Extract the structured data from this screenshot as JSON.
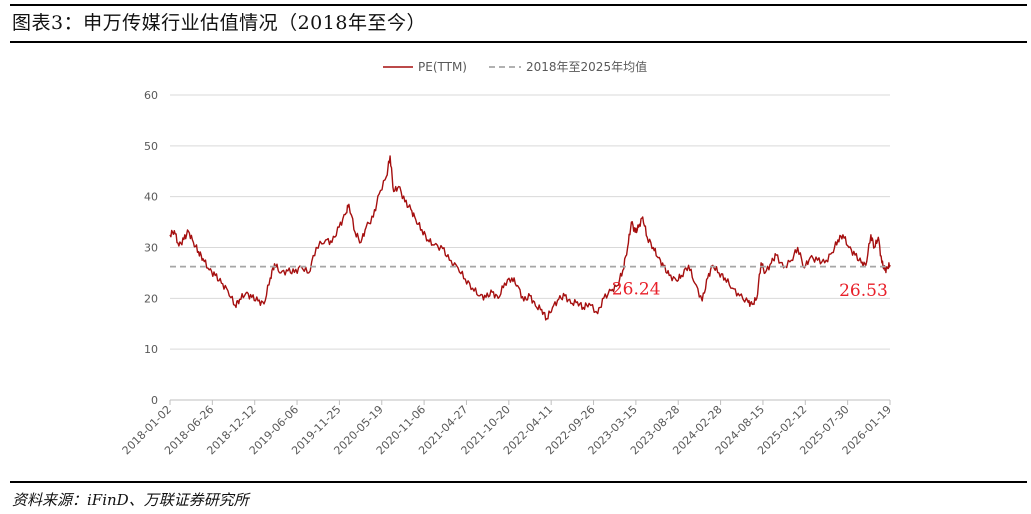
{
  "page": {
    "title": "图表3：申万传媒行业估值情况（2018年至今）",
    "source": "资料来源：iFinD、万联证券研究所"
  },
  "colors": {
    "pe_line": "#a50f0f",
    "avg_line": "#a6a6a6",
    "annotation": "#e8202a",
    "grid": "#d9d9d9",
    "axis_text": "#595959"
  },
  "chart_data": {
    "type": "line",
    "title": "",
    "xlabel": "",
    "ylabel": "",
    "ylim": [
      0,
      60
    ],
    "yticks": [
      0,
      10,
      20,
      30,
      40,
      50,
      60
    ],
    "grid": "horizontal",
    "legend_position": "top-center",
    "x_date_range": [
      "2018-01-02",
      "2026-03-31"
    ],
    "xtick_labels": [
      "2018-01-02",
      "2018-06-26",
      "2018-12-12",
      "2019-06-06",
      "2019-11-25",
      "2020-05-19",
      "2020-11-06",
      "2021-04-27",
      "2021-10-20",
      "2022-04-11",
      "2022-09-26",
      "2023-03-15",
      "2023-08-28",
      "2024-02-28",
      "2024-08-15",
      "2025-02-12",
      "2025-07-30",
      "2026-01-19"
    ],
    "series": [
      {
        "name": "PE(TTM)",
        "style": "solid",
        "points": [
          [
            "2018-01-02",
            32.5
          ],
          [
            "2018-01-20",
            33.3
          ],
          [
            "2018-02-08",
            30.3
          ],
          [
            "2018-03-01",
            31.6
          ],
          [
            "2018-03-20",
            33.2
          ],
          [
            "2018-04-10",
            31.0
          ],
          [
            "2018-05-01",
            29.2
          ],
          [
            "2018-05-20",
            27.8
          ],
          [
            "2018-06-15",
            25.6
          ],
          [
            "2018-07-10",
            24.5
          ],
          [
            "2018-08-05",
            23.0
          ],
          [
            "2018-09-01",
            21.5
          ],
          [
            "2018-10-01",
            18.6
          ],
          [
            "2018-10-20",
            19.8
          ],
          [
            "2018-11-15",
            21.0
          ],
          [
            "2018-12-10",
            20.2
          ],
          [
            "2019-01-05",
            19.5
          ],
          [
            "2019-01-30",
            18.9
          ],
          [
            "2019-02-25",
            24.0
          ],
          [
            "2019-03-15",
            26.8
          ],
          [
            "2019-04-10",
            25.0
          ],
          [
            "2019-05-10",
            25.4
          ],
          [
            "2019-06-06",
            25.1
          ],
          [
            "2019-07-05",
            26.2
          ],
          [
            "2019-08-05",
            25.0
          ],
          [
            "2019-09-05",
            30.0
          ],
          [
            "2019-10-15",
            31.5
          ],
          [
            "2019-11-10",
            31.0
          ],
          [
            "2019-12-10",
            34.0
          ],
          [
            "2020-01-05",
            36.5
          ],
          [
            "2020-01-20",
            38.5
          ],
          [
            "2020-02-15",
            33.0
          ],
          [
            "2020-03-10",
            31.0
          ],
          [
            "2020-04-01",
            34.0
          ],
          [
            "2020-05-01",
            36.0
          ],
          [
            "2020-05-25",
            40.5
          ],
          [
            "2020-06-25",
            44.0
          ],
          [
            "2020-07-10",
            48.0
          ],
          [
            "2020-07-25",
            41.0
          ],
          [
            "2020-08-15",
            42.0
          ],
          [
            "2020-09-10",
            39.0
          ],
          [
            "2020-10-05",
            37.5
          ],
          [
            "2020-10-25",
            35.5
          ],
          [
            "2020-11-20",
            33.5
          ],
          [
            "2020-12-15",
            31.5
          ],
          [
            "2021-01-10",
            30.5
          ],
          [
            "2021-02-15",
            29.8
          ],
          [
            "2021-03-15",
            27.5
          ],
          [
            "2021-04-20",
            26.0
          ],
          [
            "2021-05-20",
            23.8
          ],
          [
            "2021-06-20",
            22.0
          ],
          [
            "2021-07-20",
            20.5
          ],
          [
            "2021-08-15",
            20.2
          ],
          [
            "2021-09-10",
            21.2
          ],
          [
            "2021-10-05",
            20.0
          ],
          [
            "2021-11-01",
            23.0
          ],
          [
            "2021-12-01",
            24.0
          ],
          [
            "2021-12-25",
            22.5
          ],
          [
            "2022-01-20",
            19.5
          ],
          [
            "2022-02-15",
            20.5
          ],
          [
            "2022-03-10",
            18.5
          ],
          [
            "2022-04-05",
            17.8
          ],
          [
            "2022-04-26",
            16.0
          ],
          [
            "2022-05-20",
            18.2
          ],
          [
            "2022-06-15",
            19.8
          ],
          [
            "2022-07-10",
            20.5
          ],
          [
            "2022-08-05",
            19.0
          ],
          [
            "2022-09-01",
            19.3
          ],
          [
            "2022-09-26",
            18.2
          ],
          [
            "2022-10-20",
            19.0
          ],
          [
            "2022-11-25",
            17.0
          ],
          [
            "2022-12-20",
            20.0
          ],
          [
            "2023-01-20",
            21.5
          ],
          [
            "2023-02-15",
            22.5
          ],
          [
            "2023-03-10",
            25.5
          ],
          [
            "2023-03-30",
            30.0
          ],
          [
            "2023-04-15",
            35.0
          ],
          [
            "2023-05-01",
            33.0
          ],
          [
            "2023-05-15",
            34.0
          ],
          [
            "2023-06-01",
            36.0
          ],
          [
            "2023-06-20",
            32.0
          ],
          [
            "2023-07-15",
            30.0
          ],
          [
            "2023-08-05",
            28.0
          ],
          [
            "2023-08-28",
            26.2
          ],
          [
            "2023-09-20",
            24.5
          ],
          [
            "2023-10-20",
            23.5
          ],
          [
            "2023-11-10",
            24.5
          ],
          [
            "2023-12-10",
            26.5
          ],
          [
            "2024-01-05",
            23.0
          ],
          [
            "2024-02-05",
            19.5
          ],
          [
            "2024-02-28",
            24.0
          ],
          [
            "2024-03-20",
            26.5
          ],
          [
            "2024-04-15",
            25.0
          ],
          [
            "2024-05-10",
            24.0
          ],
          [
            "2024-06-10",
            22.0
          ],
          [
            "2024-07-10",
            20.5
          ],
          [
            "2024-08-15",
            19.2
          ],
          [
            "2024-09-01",
            18.8
          ],
          [
            "2024-09-20",
            20.0
          ],
          [
            "2024-10-08",
            27.0
          ],
          [
            "2024-10-25",
            25.0
          ],
          [
            "2024-11-20",
            27.0
          ],
          [
            "2024-12-10",
            28.5
          ],
          [
            "2025-01-10",
            26.0
          ],
          [
            "2025-02-12",
            27.5
          ],
          [
            "2025-03-10",
            30.0
          ],
          [
            "2025-04-07",
            26.0
          ],
          [
            "2025-05-01",
            28.0
          ],
          [
            "2025-06-01",
            27.5
          ],
          [
            "2025-07-01",
            27.0
          ],
          [
            "2025-08-01",
            29.0
          ],
          [
            "2025-08-25",
            31.5
          ],
          [
            "2025-09-15",
            32.5
          ],
          [
            "2025-10-10",
            30.0
          ],
          [
            "2025-11-05",
            28.5
          ],
          [
            "2025-12-01",
            27.0
          ],
          [
            "2025-12-20",
            26.5
          ],
          [
            "2026-01-10",
            32.5
          ],
          [
            "2026-01-25",
            30.0
          ],
          [
            "2026-02-10",
            32.0
          ],
          [
            "2026-02-25",
            27.0
          ],
          [
            "2026-03-10",
            25.5
          ],
          [
            "2026-03-20",
            26.0
          ],
          [
            "2026-03-31",
            26.6
          ]
        ]
      },
      {
        "name": "2018年至2025年均值",
        "style": "dashed",
        "value": 26.24
      }
    ],
    "annotations": [
      {
        "text": "26.24",
        "date": "2023-05-05",
        "y": 20.8
      },
      {
        "text": "26.53",
        "date": "2025-12-10",
        "y": 20.5
      }
    ]
  }
}
